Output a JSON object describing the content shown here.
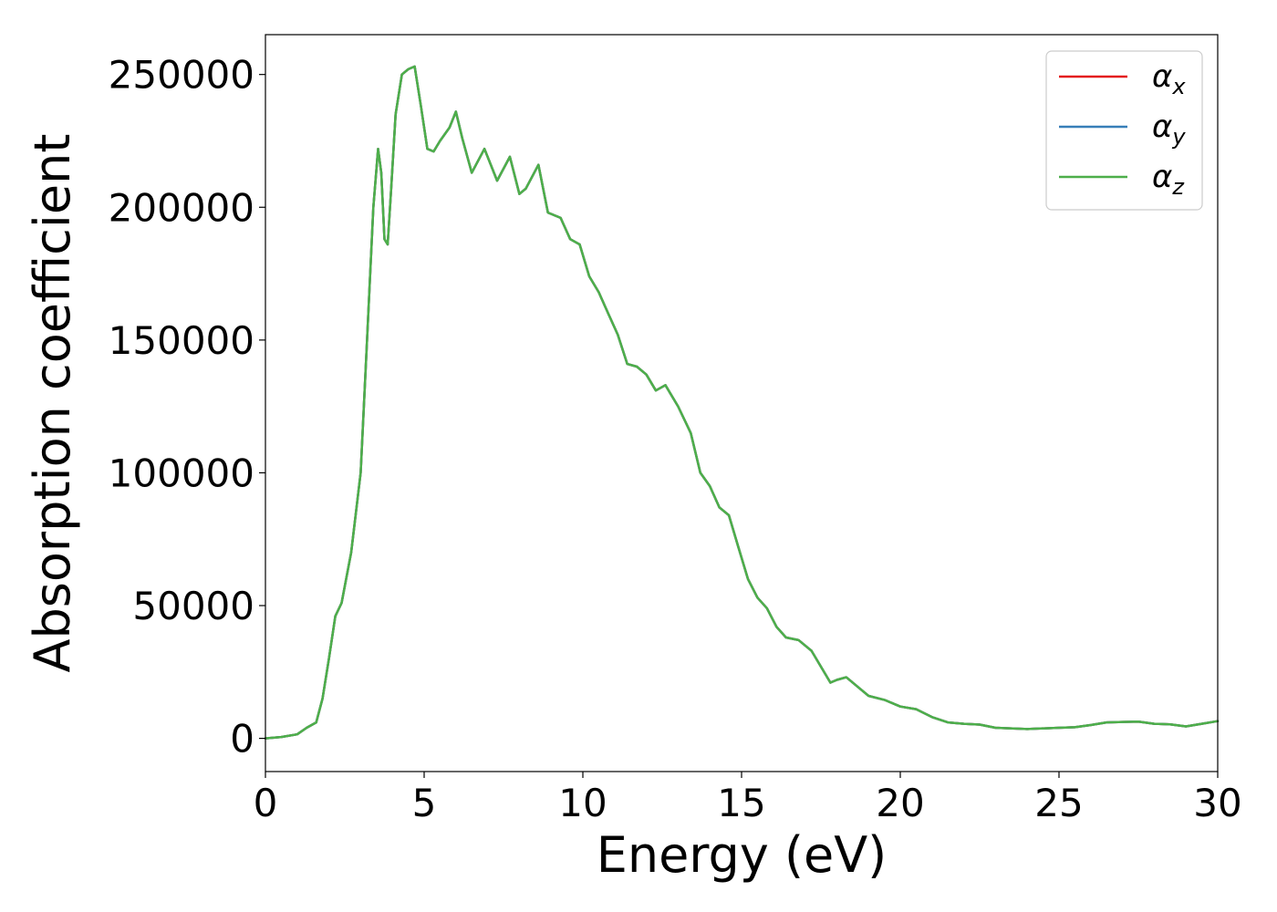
{
  "chart_data": {
    "type": "line",
    "xlabel": "Energy (eV)",
    "ylabel": "Absorption coefficient",
    "xlim": [
      0,
      30
    ],
    "ylim": [
      -12500,
      265000
    ],
    "xticks": [
      0,
      5,
      10,
      15,
      20,
      25,
      30
    ],
    "yticks": [
      0,
      50000,
      100000,
      150000,
      200000,
      250000
    ],
    "xtick_labels": [
      "0",
      "5",
      "10",
      "15",
      "20",
      "25",
      "30"
    ],
    "ytick_labels": [
      "0",
      "50000",
      "100000",
      "150000",
      "200000",
      "250000"
    ],
    "grid": false,
    "legend_position": "top-right",
    "series": [
      {
        "name": "α_x",
        "symbol": "α",
        "sub": "x",
        "color": "#e41a1c",
        "x": [
          0,
          0.5,
          1.0,
          1.3,
          1.6,
          1.8,
          2.0,
          2.2,
          2.4,
          2.7,
          3.0,
          3.2,
          3.4,
          3.55,
          3.65,
          3.75,
          3.85,
          3.95,
          4.1,
          4.3,
          4.5,
          4.7,
          4.9,
          5.1,
          5.3,
          5.5,
          5.8,
          6.0,
          6.2,
          6.5,
          6.9,
          7.3,
          7.7,
          8.0,
          8.2,
          8.6,
          8.9,
          9.3,
          9.6,
          9.9,
          10.2,
          10.5,
          10.8,
          11.1,
          11.4,
          11.7,
          12.0,
          12.3,
          12.6,
          13.0,
          13.4,
          13.7,
          14.0,
          14.3,
          14.6,
          14.9,
          15.2,
          15.5,
          15.8,
          16.1,
          16.4,
          16.8,
          17.2,
          17.5,
          17.8,
          18.0,
          18.3,
          18.7,
          19.0,
          19.5,
          20.0,
          20.5,
          21.0,
          21.5,
          22.0,
          22.5,
          23.0,
          24.0,
          25.0,
          25.5,
          26.0,
          26.5,
          27.0,
          27.5,
          28.0,
          28.5,
          29.0,
          29.5,
          30.0
        ],
        "y": [
          0,
          500,
          1500,
          4000,
          6000,
          15000,
          30000,
          46000,
          51000,
          70000,
          100000,
          150000,
          200000,
          222000,
          213000,
          188000,
          186000,
          205000,
          235000,
          250000,
          252000,
          253000,
          238000,
          222000,
          221000,
          225000,
          230000,
          236000,
          226000,
          213000,
          222000,
          210000,
          219000,
          205000,
          207000,
          216000,
          198000,
          196000,
          188000,
          186000,
          174000,
          168000,
          160000,
          152000,
          141000,
          140000,
          137000,
          131000,
          133000,
          125000,
          115000,
          100000,
          95000,
          87000,
          84000,
          72000,
          60000,
          53000,
          49000,
          42000,
          38000,
          37000,
          33000,
          27000,
          21000,
          22000,
          23000,
          19000,
          16000,
          14500,
          12000,
          11000,
          8000,
          6000,
          5500,
          5200,
          4000,
          3500,
          4000,
          4200,
          5000,
          6000,
          6200,
          6300,
          5500,
          5300,
          4500,
          5500,
          6500
        ]
      },
      {
        "name": "α_y",
        "symbol": "α",
        "sub": "y",
        "color": "#377eb8",
        "x": [
          0,
          0.5,
          1.0,
          1.3,
          1.6,
          1.8,
          2.0,
          2.2,
          2.4,
          2.7,
          3.0,
          3.2,
          3.4,
          3.55,
          3.65,
          3.75,
          3.85,
          3.95,
          4.1,
          4.3,
          4.5,
          4.7,
          4.9,
          5.1,
          5.3,
          5.5,
          5.8,
          6.0,
          6.2,
          6.5,
          6.9,
          7.3,
          7.7,
          8.0,
          8.2,
          8.6,
          8.9,
          9.3,
          9.6,
          9.9,
          10.2,
          10.5,
          10.8,
          11.1,
          11.4,
          11.7,
          12.0,
          12.3,
          12.6,
          13.0,
          13.4,
          13.7,
          14.0,
          14.3,
          14.6,
          14.9,
          15.2,
          15.5,
          15.8,
          16.1,
          16.4,
          16.8,
          17.2,
          17.5,
          17.8,
          18.0,
          18.3,
          18.7,
          19.0,
          19.5,
          20.0,
          20.5,
          21.0,
          21.5,
          22.0,
          22.5,
          23.0,
          24.0,
          25.0,
          25.5,
          26.0,
          26.5,
          27.0,
          27.5,
          28.0,
          28.5,
          29.0,
          29.5,
          30.0
        ],
        "y": [
          0,
          500,
          1500,
          4000,
          6000,
          15000,
          30000,
          46000,
          51000,
          70000,
          100000,
          150000,
          200000,
          222000,
          213000,
          188000,
          186000,
          205000,
          235000,
          250000,
          252000,
          253000,
          238000,
          222000,
          221000,
          225000,
          230000,
          236000,
          226000,
          213000,
          222000,
          210000,
          219000,
          205000,
          207000,
          216000,
          198000,
          196000,
          188000,
          186000,
          174000,
          168000,
          160000,
          152000,
          141000,
          140000,
          137000,
          131000,
          133000,
          125000,
          115000,
          100000,
          95000,
          87000,
          84000,
          72000,
          60000,
          53000,
          49000,
          42000,
          38000,
          37000,
          33000,
          27000,
          21000,
          22000,
          23000,
          19000,
          16000,
          14500,
          12000,
          11000,
          8000,
          6000,
          5500,
          5200,
          4000,
          3500,
          4000,
          4200,
          5000,
          6000,
          6200,
          6300,
          5500,
          5300,
          4500,
          5500,
          6500
        ]
      },
      {
        "name": "α_z",
        "symbol": "α",
        "sub": "z",
        "color": "#4daf4a",
        "x": [
          0,
          0.5,
          1.0,
          1.3,
          1.6,
          1.8,
          2.0,
          2.2,
          2.4,
          2.7,
          3.0,
          3.2,
          3.4,
          3.55,
          3.65,
          3.75,
          3.85,
          3.95,
          4.1,
          4.3,
          4.5,
          4.7,
          4.9,
          5.1,
          5.3,
          5.5,
          5.8,
          6.0,
          6.2,
          6.5,
          6.9,
          7.3,
          7.7,
          8.0,
          8.2,
          8.6,
          8.9,
          9.3,
          9.6,
          9.9,
          10.2,
          10.5,
          10.8,
          11.1,
          11.4,
          11.7,
          12.0,
          12.3,
          12.6,
          13.0,
          13.4,
          13.7,
          14.0,
          14.3,
          14.6,
          14.9,
          15.2,
          15.5,
          15.8,
          16.1,
          16.4,
          16.8,
          17.2,
          17.5,
          17.8,
          18.0,
          18.3,
          18.7,
          19.0,
          19.5,
          20.0,
          20.5,
          21.0,
          21.5,
          22.0,
          22.5,
          23.0,
          24.0,
          25.0,
          25.5,
          26.0,
          26.5,
          27.0,
          27.5,
          28.0,
          28.5,
          29.0,
          29.5,
          30.0
        ],
        "y": [
          0,
          500,
          1500,
          4000,
          6000,
          15000,
          30000,
          46000,
          51000,
          70000,
          100000,
          150000,
          200000,
          222000,
          213000,
          188000,
          186000,
          205000,
          235000,
          250000,
          252000,
          253000,
          238000,
          222000,
          221000,
          225000,
          230000,
          236000,
          226000,
          213000,
          222000,
          210000,
          219000,
          205000,
          207000,
          216000,
          198000,
          196000,
          188000,
          186000,
          174000,
          168000,
          160000,
          152000,
          141000,
          140000,
          137000,
          131000,
          133000,
          125000,
          115000,
          100000,
          95000,
          87000,
          84000,
          72000,
          60000,
          53000,
          49000,
          42000,
          38000,
          37000,
          33000,
          27000,
          21000,
          22000,
          23000,
          19000,
          16000,
          14500,
          12000,
          11000,
          8000,
          6000,
          5500,
          5200,
          4000,
          3500,
          4000,
          4200,
          5000,
          6000,
          6200,
          6300,
          5500,
          5300,
          4500,
          5500,
          6500
        ]
      }
    ]
  }
}
